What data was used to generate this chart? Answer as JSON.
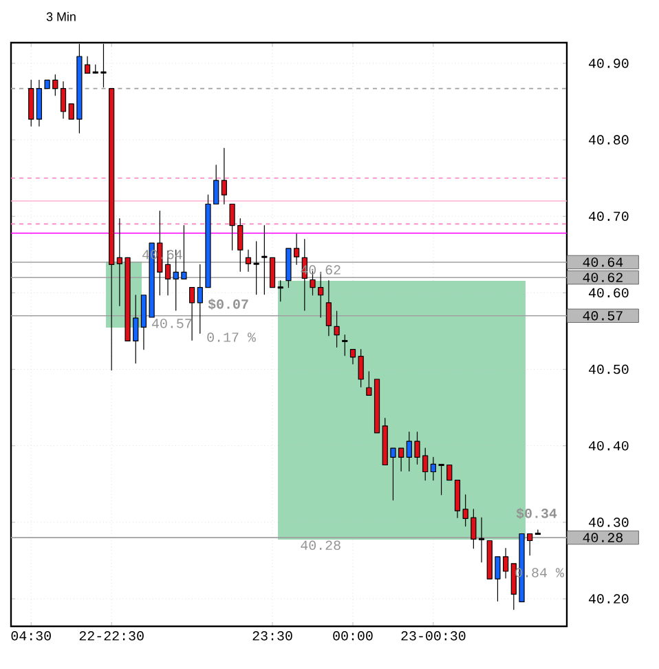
{
  "chart_data": {
    "type": "candlestick",
    "title": "3 Min",
    "categories": [
      "04:30",
      null,
      null,
      null,
      null,
      null,
      null,
      null,
      null,
      null,
      "22-22:30",
      null,
      null,
      null,
      null,
      null,
      null,
      null,
      null,
      null,
      null,
      null,
      null,
      null,
      null,
      null,
      null,
      null,
      null,
      null,
      "23:30",
      null,
      null,
      null,
      null,
      null,
      null,
      null,
      null,
      null,
      "00:00",
      null,
      null,
      null,
      null,
      null,
      null,
      null,
      null,
      null,
      "23-00:30",
      null,
      null,
      null,
      null,
      null,
      null,
      null,
      null,
      null,
      null,
      null,
      null,
      null
    ],
    "ohlc": [
      [
        40.867,
        40.878,
        40.818,
        40.827
      ],
      [
        40.827,
        40.878,
        40.818,
        40.867
      ],
      [
        40.867,
        40.878,
        40.867,
        40.878
      ],
      [
        40.878,
        40.885,
        40.858,
        40.867
      ],
      [
        40.867,
        40.876,
        40.828,
        40.837
      ],
      [
        40.847,
        40.847,
        40.827,
        40.827
      ],
      [
        40.827,
        40.925,
        40.809,
        40.909
      ],
      [
        40.898,
        40.909,
        40.887,
        40.887
      ],
      [
        40.888,
        40.898,
        40.887,
        40.888
      ],
      [
        40.888,
        40.925,
        40.869,
        40.888
      ],
      [
        40.867,
        40.867,
        40.499,
        40.637
      ],
      [
        40.646,
        40.697,
        40.583,
        40.638
      ],
      [
        40.646,
        40.646,
        40.537,
        40.537
      ],
      [
        40.537,
        40.597,
        40.508,
        40.567
      ],
      [
        40.555,
        40.597,
        40.526,
        40.597
      ],
      [
        40.568,
        40.665,
        40.568,
        40.665
      ],
      [
        40.665,
        40.707,
        40.597,
        40.627
      ],
      [
        40.637,
        40.655,
        40.597,
        40.618
      ],
      [
        40.618,
        40.656,
        40.577,
        40.627
      ],
      [
        40.618,
        40.688,
        40.618,
        40.627
      ],
      [
        40.607,
        40.607,
        40.538,
        40.587
      ],
      [
        40.587,
        40.637,
        40.547,
        40.607
      ],
      [
        40.607,
        40.728,
        40.607,
        40.716
      ],
      [
        40.716,
        40.767,
        40.716,
        40.747
      ],
      [
        40.747,
        40.789,
        40.716,
        40.728
      ],
      [
        40.716,
        40.716,
        40.656,
        40.688
      ],
      [
        40.688,
        40.697,
        40.628,
        40.656
      ],
      [
        40.646,
        40.656,
        40.628,
        40.638
      ],
      [
        40.638,
        40.667,
        40.598,
        40.638
      ],
      [
        40.647,
        40.688,
        40.598,
        40.647
      ],
      [
        40.646,
        40.646,
        40.607,
        40.607
      ],
      [
        40.607,
        40.616,
        40.589,
        40.607
      ],
      [
        40.616,
        40.658,
        40.607,
        40.658
      ],
      [
        40.658,
        40.677,
        40.637,
        40.647
      ],
      [
        40.646,
        40.67,
        40.577,
        40.619
      ],
      [
        40.617,
        40.628,
        40.597,
        40.607
      ],
      [
        40.607,
        40.627,
        40.568,
        40.597
      ],
      [
        40.587,
        40.616,
        40.544,
        40.557
      ],
      [
        40.556,
        40.576,
        40.529,
        40.545
      ],
      [
        40.537,
        40.545,
        40.518,
        40.537
      ],
      [
        40.526,
        40.526,
        40.507,
        40.516
      ],
      [
        40.517,
        40.526,
        40.477,
        40.487
      ],
      [
        40.476,
        40.497,
        40.466,
        40.466
      ],
      [
        40.487,
        40.487,
        40.417,
        40.417
      ],
      [
        40.426,
        40.436,
        40.375,
        40.375
      ],
      [
        40.385,
        40.397,
        40.329,
        40.397
      ],
      [
        40.397,
        40.397,
        40.367,
        40.385
      ],
      [
        40.385,
        40.418,
        40.367,
        40.406
      ],
      [
        40.406,
        40.418,
        40.376,
        40.385
      ],
      [
        40.387,
        40.397,
        40.355,
        40.366
      ],
      [
        40.366,
        40.385,
        40.355,
        40.376
      ],
      [
        40.375,
        40.375,
        40.336,
        40.375
      ],
      [
        40.375,
        40.375,
        40.355,
        40.355
      ],
      [
        40.355,
        40.355,
        40.306,
        40.315
      ],
      [
        40.317,
        40.336,
        40.295,
        40.305
      ],
      [
        40.306,
        40.317,
        40.266,
        40.278
      ],
      [
        40.278,
        40.306,
        40.248,
        40.278
      ],
      [
        40.276,
        40.276,
        40.226,
        40.226
      ],
      [
        40.226,
        40.255,
        40.197,
        40.255
      ],
      [
        40.255,
        40.266,
        40.227,
        40.236
      ],
      [
        40.246,
        40.246,
        40.186,
        40.206
      ],
      [
        40.196,
        40.285,
        40.196,
        40.285
      ],
      [
        40.285,
        40.285,
        40.257,
        40.276
      ],
      [
        40.285,
        40.29,
        40.285,
        40.285
      ]
    ],
    "colors": [
      "#e01018",
      "#1464ff",
      "#1464ff",
      "#e01018",
      "#e01018",
      "#e01018",
      "#1464ff",
      "#e01018",
      "#000000",
      "#000000",
      "#e01018",
      "#e01018",
      "#e01018",
      "#1464ff",
      "#1464ff",
      "#1464ff",
      "#e01018",
      "#e01018",
      "#1464ff",
      "#1464ff",
      "#e01018",
      "#1464ff",
      "#1464ff",
      "#1464ff",
      "#e01018",
      "#e01018",
      "#e01018",
      "#e01018",
      "#000000",
      "#000000",
      "#e01018",
      "#000000",
      "#1464ff",
      "#e01018",
      "#e01018",
      "#e01018",
      "#e01018",
      "#e01018",
      "#e01018",
      "#000000",
      "#e01018",
      "#e01018",
      "#e01018",
      "#e01018",
      "#e01018",
      "#1464ff",
      "#e01018",
      "#1464ff",
      "#e01018",
      "#e01018",
      "#1464ff",
      "#000000",
      "#e01018",
      "#e01018",
      "#e01018",
      "#e01018",
      "#000000",
      "#e01018",
      "#1464ff",
      "#e01018",
      "#e01018",
      "#1464ff",
      "#e01018",
      "#000000"
    ],
    "ylim": [
      40.164,
      40.927
    ],
    "yticks": [
      {
        "value": 40.2,
        "label": "40.20"
      },
      {
        "value": 40.3,
        "label": "40.30"
      },
      {
        "value": 40.4,
        "label": "40.40"
      },
      {
        "value": 40.5,
        "label": "40.50"
      },
      {
        "value": 40.6,
        "label": "40.60"
      },
      {
        "value": 40.7,
        "label": "40.70"
      },
      {
        "value": 40.8,
        "label": "40.80"
      },
      {
        "value": 40.9,
        "label": "40.90"
      }
    ],
    "grid": true,
    "ref_lines": [
      {
        "axis": "y",
        "value": 40.867,
        "color": "#a0a0a0",
        "line_style": "dashed"
      },
      {
        "axis": "y",
        "value": 40.75,
        "color": "#ff80c0",
        "line_style": "dashed"
      },
      {
        "axis": "y",
        "value": 40.72,
        "color": "#ffb0d0",
        "line_style": "solid"
      },
      {
        "axis": "y",
        "value": 40.69,
        "color": "#ff80c0",
        "line_style": "dashed"
      },
      {
        "axis": "y",
        "value": 40.678,
        "color": "#ff00ff",
        "line_style": "solid"
      },
      {
        "axis": "y",
        "value": 40.64,
        "label": "40.64",
        "color": "#a0a0a0",
        "line_style": "solid"
      },
      {
        "axis": "y",
        "value": 40.62,
        "label": "40.62",
        "color": "#a0a0a0",
        "line_style": "solid"
      },
      {
        "axis": "y",
        "value": 40.57,
        "label": "40.57",
        "color": "#a0a0a0",
        "line_style": "solid"
      },
      {
        "axis": "y",
        "value": 40.28,
        "label": "40.28",
        "color": "#a0a0a0",
        "line_style": "solid"
      }
    ],
    "annotations": [
      {
        "text": "40.64",
        "y": 40.64
      },
      {
        "text": "40.57",
        "y": 40.57
      },
      "$0.07",
      "0.17 %",
      {
        "text": "40.62",
        "y": 40.62
      },
      {
        "text": "40.28",
        "y": 40.28
      },
      "$0.34",
      "0.84 %"
    ]
  }
}
